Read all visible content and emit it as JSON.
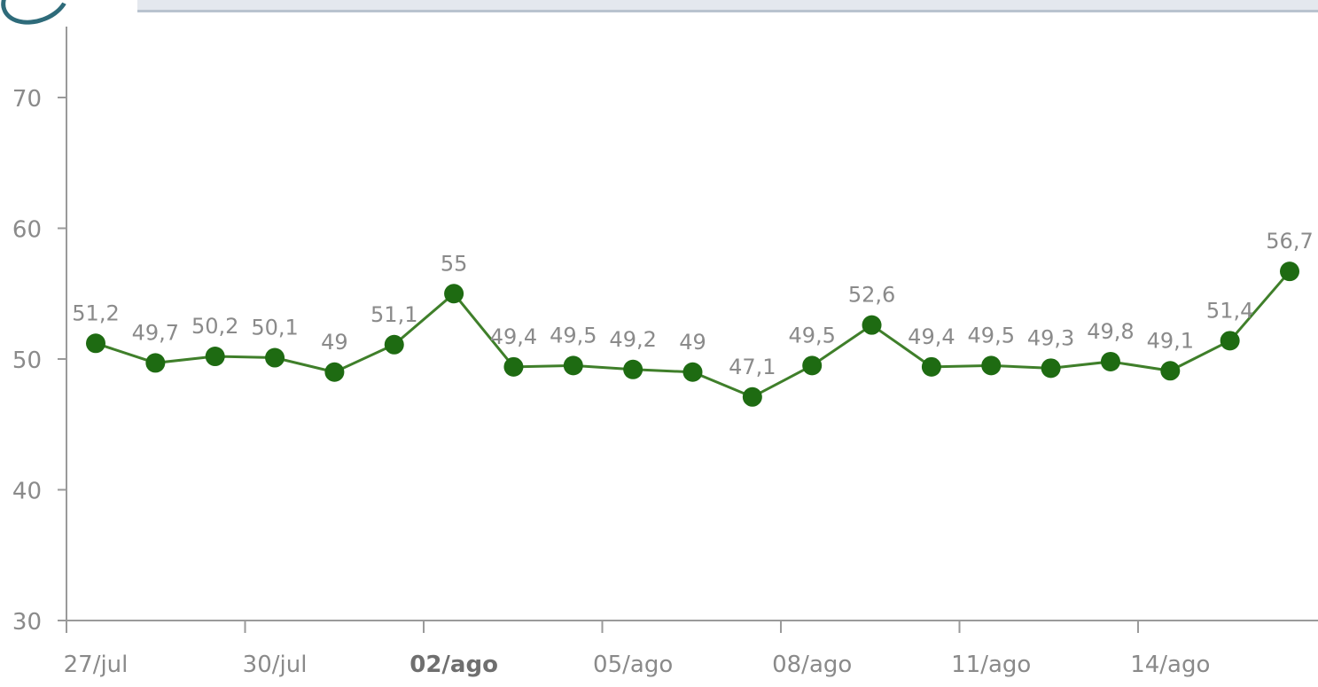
{
  "chart_data": {
    "type": "line",
    "x_tick_labels": [
      "27/jul",
      "30/jul",
      "02/ago",
      "05/ago",
      "08/ago",
      "11/ago",
      "14/ago"
    ],
    "x_tick_highlight": "02/ago",
    "x": [
      "27/jul",
      "28/jul",
      "29/jul",
      "30/jul",
      "31/jul",
      "01/ago",
      "02/ago",
      "03/ago",
      "04/ago",
      "05/ago",
      "06/ago",
      "07/ago",
      "08/ago",
      "09/ago",
      "10/ago",
      "11/ago",
      "12/ago",
      "13/ago",
      "14/ago",
      "15/ago",
      "16/ago"
    ],
    "series": [
      {
        "values": [
          51.2,
          49.7,
          50.2,
          50.1,
          49,
          51.1,
          55,
          49.4,
          49.5,
          49.2,
          49,
          47.1,
          49.5,
          52.6,
          49.4,
          49.5,
          49.3,
          49.8,
          49.1,
          51.4,
          56.7
        ],
        "labels": [
          "51,2",
          "49,7",
          "50,2",
          "50,1",
          "49",
          "51,1",
          "55",
          "49,4",
          "49,5",
          "49,2",
          "49",
          "47,1",
          "49,5",
          "52,6",
          "49,4",
          "49,5",
          "49,3",
          "49,8",
          "49,1",
          "51,4",
          "56,7"
        ],
        "color": "#1e6b12"
      }
    ],
    "y_ticks": [
      "30",
      "40",
      "50",
      "60",
      "70"
    ],
    "ylim": [
      30,
      70
    ],
    "grid": false,
    "title": "",
    "xlabel": "",
    "ylabel": ""
  },
  "colors": {
    "line": "#3f7f2a",
    "marker": "#1e6b12",
    "axis": "#9a9a9a",
    "text": "#8a8a8a"
  }
}
